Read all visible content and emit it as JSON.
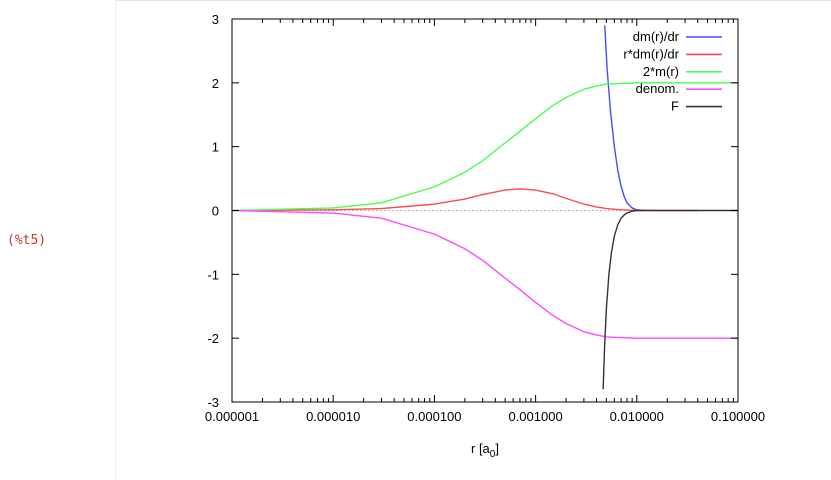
{
  "cell": {
    "label": "(%t5)"
  },
  "chart_data": {
    "type": "line",
    "title": "",
    "xlabel": "r [a",
    "xlabel_sub": "0",
    "xlabel_close": "]",
    "ylabel": "",
    "xscale": "log",
    "xlim": [
      1e-06,
      0.1
    ],
    "ylim": [
      -3,
      3
    ],
    "grid": false,
    "legend": "top-right",
    "x_tick_labels": [
      "0.000001",
      "0.000010",
      "0.000100",
      "0.001000",
      "0.010000",
      "0.100000"
    ],
    "y_tick_labels": [
      "3",
      "2",
      "1",
      "0",
      "-1",
      "-2",
      "-3"
    ],
    "zero_line": {
      "color": "#a0a0a0",
      "style": "dotted"
    },
    "series": [
      {
        "name": "dm(r)/dr",
        "color": "#4a4aff",
        "x": [
          0.00482,
          0.0051,
          0.0055,
          0.006,
          0.0065,
          0.007,
          0.0075,
          0.008,
          0.009,
          0.01,
          0.012
        ],
        "y": [
          2.9,
          2.2,
          1.55,
          1.0,
          0.62,
          0.38,
          0.22,
          0.12,
          0.04,
          0.01,
          0.0
        ]
      },
      {
        "name": "r*dm(r)/dr",
        "color": "#ff4a4a",
        "x": [
          1e-06,
          1e-05,
          3e-05,
          0.0001,
          0.0002,
          0.0003,
          0.0005,
          0.0007,
          0.001,
          0.0015,
          0.002,
          0.003,
          0.004,
          0.005,
          0.007,
          0.01,
          0.015,
          0.02,
          0.03,
          0.04
        ],
        "y": [
          0.0,
          0.01,
          0.03,
          0.1,
          0.18,
          0.25,
          0.32,
          0.34,
          0.32,
          0.26,
          0.19,
          0.1,
          0.055,
          0.03,
          0.01,
          0.003,
          0.0,
          0.0,
          0.0,
          0.0
        ]
      },
      {
        "name": "2*m(r)",
        "color": "#4aff4a",
        "x": [
          1e-06,
          1e-05,
          3e-05,
          0.0001,
          0.0002,
          0.0003,
          0.0005,
          0.0007,
          0.001,
          0.0015,
          0.002,
          0.003,
          0.004,
          0.005,
          0.007,
          0.01,
          0.02,
          0.05,
          0.1
        ],
        "y": [
          0.0,
          0.04,
          0.12,
          0.37,
          0.6,
          0.78,
          1.06,
          1.24,
          1.44,
          1.65,
          1.77,
          1.9,
          1.95,
          1.98,
          1.99,
          2.0,
          2.0,
          2.0,
          2.0
        ]
      },
      {
        "name": "denom.",
        "color": "#ff4aff",
        "x": [
          1e-06,
          1e-05,
          3e-05,
          0.0001,
          0.0002,
          0.0003,
          0.0005,
          0.0007,
          0.001,
          0.0015,
          0.002,
          0.003,
          0.004,
          0.005,
          0.007,
          0.01,
          0.02,
          0.05,
          0.1
        ],
        "y": [
          0.0,
          -0.04,
          -0.12,
          -0.37,
          -0.6,
          -0.78,
          -1.06,
          -1.24,
          -1.44,
          -1.65,
          -1.77,
          -1.9,
          -1.95,
          -1.98,
          -1.99,
          -2.0,
          -2.0,
          -2.0,
          -2.0
        ]
      },
      {
        "name": "F",
        "color": "#333333",
        "x": [
          0.00465,
          0.0048,
          0.005,
          0.0053,
          0.0056,
          0.006,
          0.0065,
          0.007,
          0.0075,
          0.008,
          0.009,
          0.01,
          0.015,
          0.02,
          0.03,
          0.05,
          0.1
        ],
        "y": [
          -2.8,
          -2.15,
          -1.55,
          -1.0,
          -0.67,
          -0.4,
          -0.22,
          -0.12,
          -0.07,
          -0.04,
          -0.01,
          0.0,
          0.0,
          0.0,
          0.0,
          0.0,
          0.0
        ]
      }
    ]
  }
}
